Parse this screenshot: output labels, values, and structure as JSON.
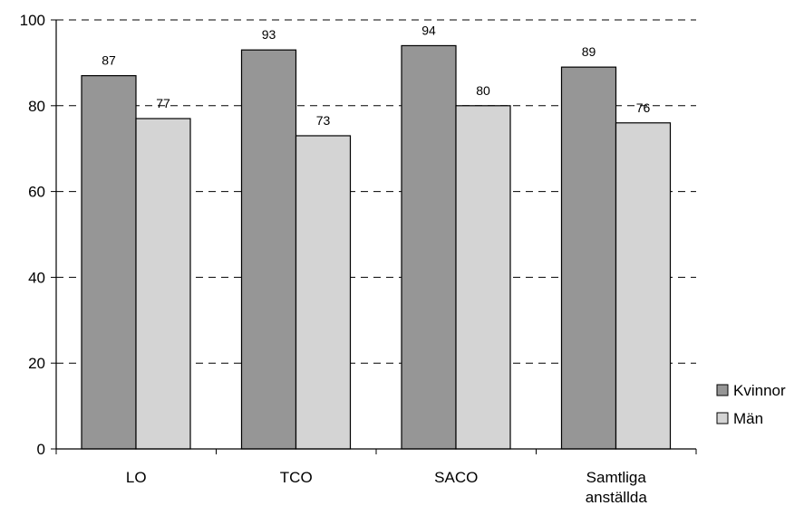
{
  "chart_data": {
    "type": "bar",
    "categories": [
      [
        "LO"
      ],
      [
        "TCO"
      ],
      [
        "SACO"
      ],
      [
        "Samtliga",
        "anställda"
      ]
    ],
    "series": [
      {
        "name": "Kvinnor",
        "values": [
          87,
          93,
          94,
          89
        ],
        "color": "#969696"
      },
      {
        "name": "Män",
        "values": [
          77,
          73,
          80,
          76
        ],
        "color": "#d4d4d4"
      }
    ],
    "ylim": [
      0,
      100
    ],
    "yticks": [
      0,
      20,
      40,
      60,
      80,
      100
    ],
    "grid": "dashed horizontal",
    "legend": "right"
  }
}
